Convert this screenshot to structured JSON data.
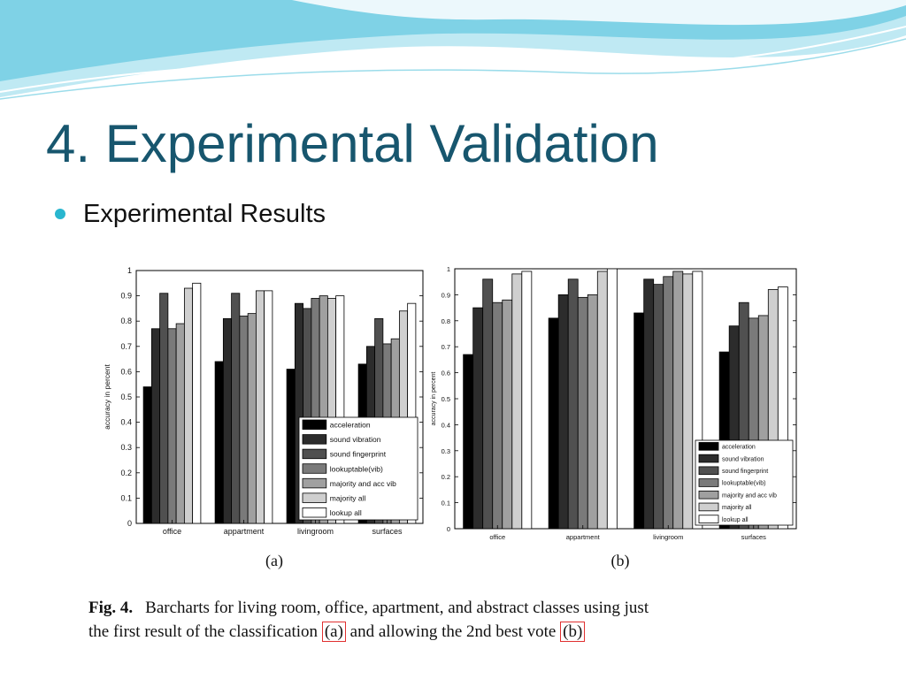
{
  "slide": {
    "title": "4. Experimental Validation",
    "bullet": "Experimental Results"
  },
  "colors": {
    "title": "#17566e",
    "bullet": "#29b6cf",
    "wave_light": "#bfe9f3",
    "wave_mid": "#7fd2e6",
    "caption_box": "#e03030"
  },
  "chart_data": [
    {
      "type": "bar",
      "panel_label": "(a)",
      "ylabel": "accuracy in percent",
      "ylim": [
        0,
        1
      ],
      "yticks": [
        "0",
        "0.1",
        "0.2",
        "0.3",
        "0.4",
        "0.5",
        "0.6",
        "0.7",
        "0.8",
        "0.9",
        "1"
      ],
      "categories": [
        "office",
        "appartment",
        "livingroom",
        "surfaces"
      ],
      "legend_position": "lower-right",
      "series": [
        {
          "name": "acceleration",
          "color": "#000000",
          "values": [
            0.54,
            0.64,
            0.61,
            0.63
          ]
        },
        {
          "name": "sound vibration",
          "color": "#2c2c2c",
          "values": [
            0.77,
            0.81,
            0.87,
            0.7
          ]
        },
        {
          "name": "sound fingerprint",
          "color": "#505050",
          "values": [
            0.91,
            0.91,
            0.85,
            0.81
          ]
        },
        {
          "name": "lookuptable(vib)",
          "color": "#7a7a7a",
          "values": [
            0.77,
            0.82,
            0.89,
            0.71
          ]
        },
        {
          "name": "majority and acc vib",
          "color": "#a0a0a0",
          "values": [
            0.79,
            0.83,
            0.9,
            0.73
          ]
        },
        {
          "name": "majority all",
          "color": "#cfcfcf",
          "values": [
            0.93,
            0.92,
            0.89,
            0.84
          ]
        },
        {
          "name": "lookup all",
          "color": "#ffffff",
          "values": [
            0.95,
            0.92,
            0.9,
            0.87
          ]
        }
      ]
    },
    {
      "type": "bar",
      "panel_label": "(b)",
      "ylabel": "accuracy in percent",
      "ylim": [
        0,
        1
      ],
      "yticks": [
        "0",
        "0.1",
        "0.2",
        "0.3",
        "0.4",
        "0.5",
        "0.6",
        "0.7",
        "0.8",
        "0.9",
        "1"
      ],
      "categories": [
        "office",
        "appartment",
        "livingroom",
        "surfaces"
      ],
      "legend_position": "lower-right",
      "series": [
        {
          "name": "acceleration",
          "color": "#000000",
          "values": [
            0.67,
            0.81,
            0.83,
            0.68
          ]
        },
        {
          "name": "sound vibration",
          "color": "#2c2c2c",
          "values": [
            0.85,
            0.9,
            0.96,
            0.78
          ]
        },
        {
          "name": "sound fingerprint",
          "color": "#505050",
          "values": [
            0.96,
            0.96,
            0.94,
            0.87
          ]
        },
        {
          "name": "lookuptable(vib)",
          "color": "#7a7a7a",
          "values": [
            0.87,
            0.89,
            0.97,
            0.81
          ]
        },
        {
          "name": "majority and acc vib",
          "color": "#a0a0a0",
          "values": [
            0.88,
            0.9,
            0.99,
            0.82
          ]
        },
        {
          "name": "majority all",
          "color": "#cfcfcf",
          "values": [
            0.98,
            0.99,
            0.98,
            0.92
          ]
        },
        {
          "name": "lookup all",
          "color": "#ffffff",
          "values": [
            0.99,
            1.0,
            0.99,
            0.93
          ]
        }
      ]
    }
  ],
  "caption": {
    "fig_label": "Fig. 4.",
    "line1": "Barcharts for living room, office, apartment, and abstract classes using just",
    "line2_prefix": "the first result of the classification",
    "ref_a": "(a)",
    "line2_middle": "and allowing the 2nd best vote",
    "ref_b": "(b)"
  }
}
